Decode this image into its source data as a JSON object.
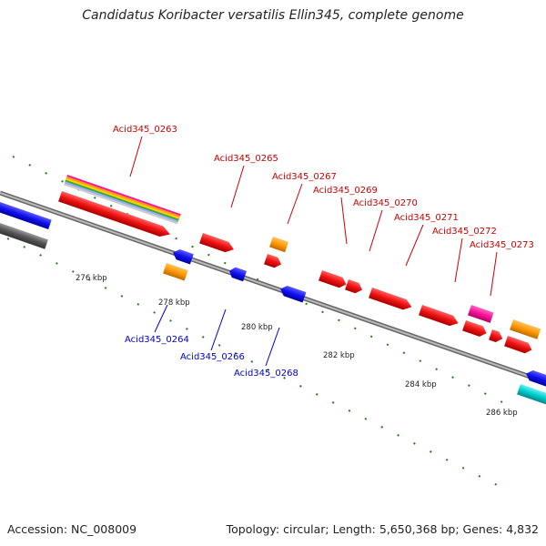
{
  "title": "Candidatus Koribacter versatilis Ellin345, complete genome",
  "accession": "Accession: NC_008009",
  "summary": "Topology: circular; Length: 5,650,368 bp; Genes: 4,832",
  "colors": {
    "forward_label": "#cc0000",
    "reverse_label": "#0000cc",
    "backbone": "#888888",
    "tick": "#2a7a1a",
    "red_gene": "#ee1111",
    "blue_gene": "#1111ee",
    "orange_gene": "#ff9900",
    "magenta_gene": "#ff1199",
    "cyan_gene": "#00cccc",
    "gray_gene": "#555555"
  },
  "scale_labels": [
    "276 kbp",
    "278 kbp",
    "280 kbp",
    "282 kbp",
    "284 kbp",
    "286 kbp"
  ],
  "forward_labels": [
    "Acid345_0263",
    "Acid345_0265",
    "Acid345_0267",
    "Acid345_0269",
    "Acid345_0270",
    "Acid345_0271",
    "Acid345_0272",
    "Acid345_0273"
  ],
  "reverse_labels": [
    "Acid345_0264",
    "Acid345_0266",
    "Acid345_0268"
  ]
}
